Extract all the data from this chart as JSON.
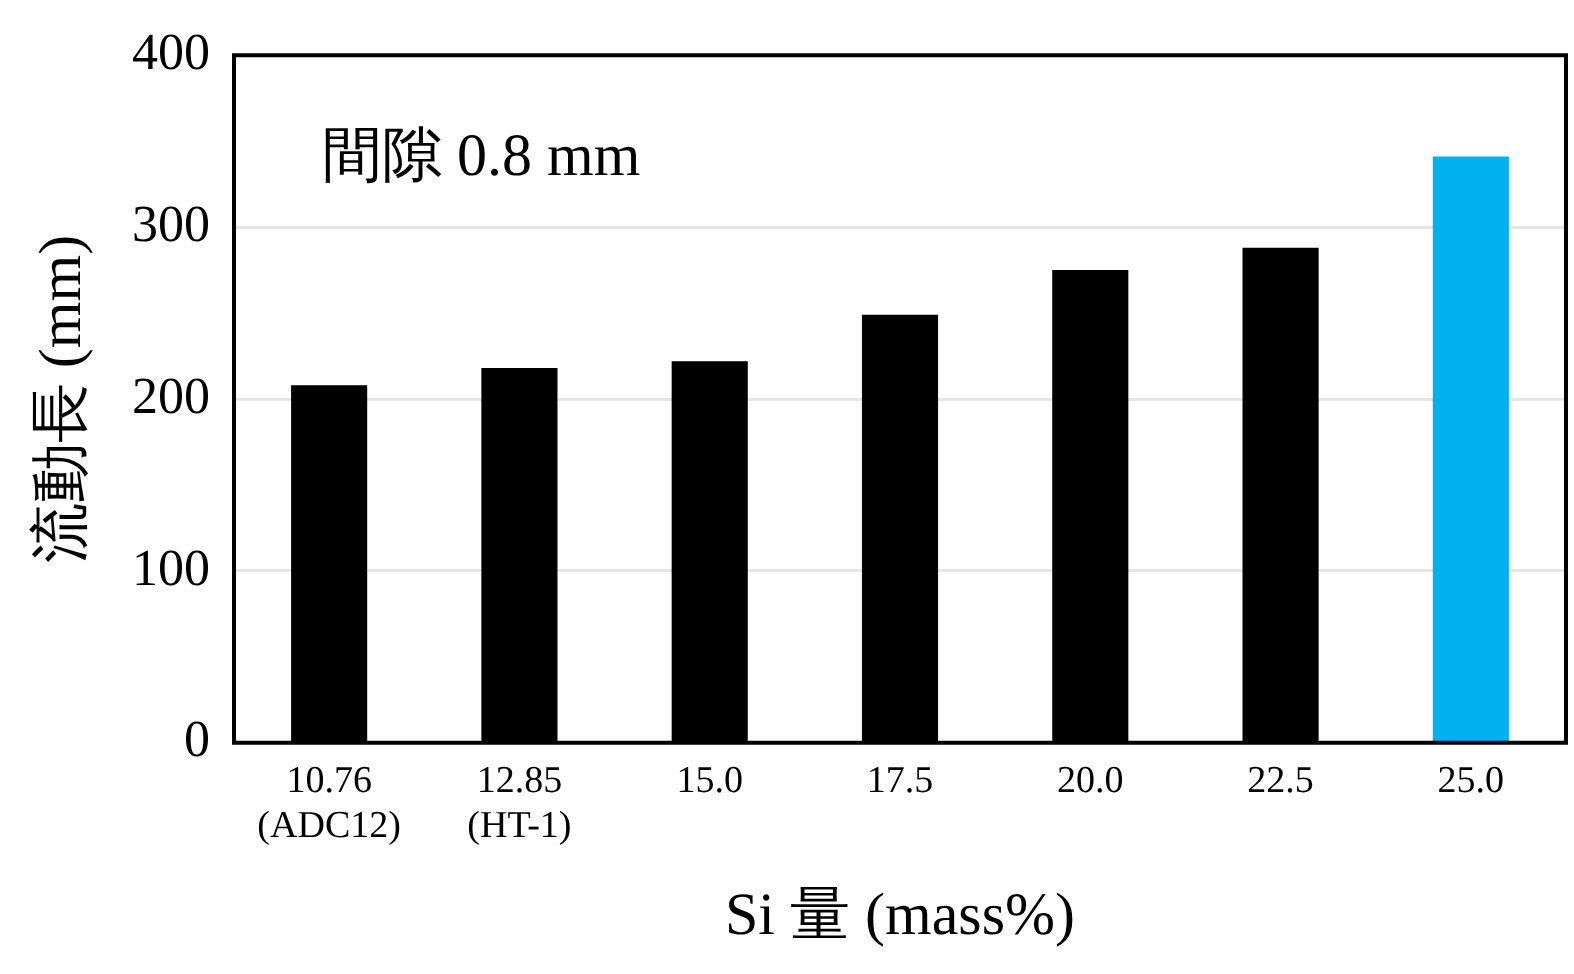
{
  "chart_data": {
    "type": "bar",
    "xlabel": "Si 量 (mass%)",
    "ylabel": "流動長 (mm)",
    "categories": [
      "10.76\n(ADC12)",
      "12.85\n(HT-1)",
      "15.0",
      "17.5",
      "20.0",
      "22.5",
      "25.0"
    ],
    "values": [
      208,
      218,
      222,
      249,
      275,
      288,
      341
    ],
    "colors": [
      "#000000",
      "#000000",
      "#000000",
      "#000000",
      "#000000",
      "#000000",
      "#00b0f0"
    ],
    "ylim": [
      0,
      400
    ],
    "yticks": [
      0,
      100,
      200,
      300,
      400
    ],
    "grid": "y",
    "annotations": [
      "間隙 0.8 mm"
    ]
  }
}
